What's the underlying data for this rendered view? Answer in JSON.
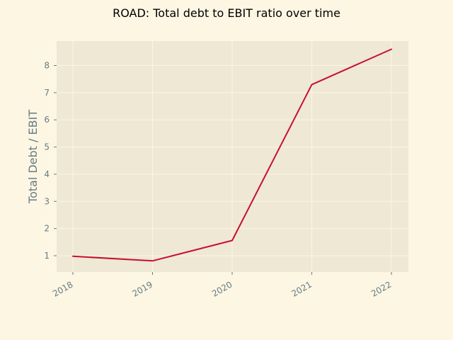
{
  "chart_data": {
    "type": "line",
    "title": "ROAD: Total debt to EBIT ratio over time",
    "xlabel": "",
    "ylabel": "Total Debt / EBIT",
    "categories": [
      "2018",
      "2019",
      "2020",
      "2021",
      "2022"
    ],
    "series": [
      {
        "values": [
          0.98,
          0.81,
          1.56,
          7.3,
          8.6
        ]
      }
    ],
    "yticks": [
      1,
      2,
      3,
      4,
      5,
      6,
      7,
      8
    ],
    "ylim": [
      0.4,
      8.9
    ],
    "grid": true,
    "colors": {
      "figure_bg": "#fdf6e3",
      "plot_bg": "#eee8d5",
      "grid": "#fdf6e3",
      "line": "#c8102e",
      "tick_text": "#657b83"
    }
  }
}
